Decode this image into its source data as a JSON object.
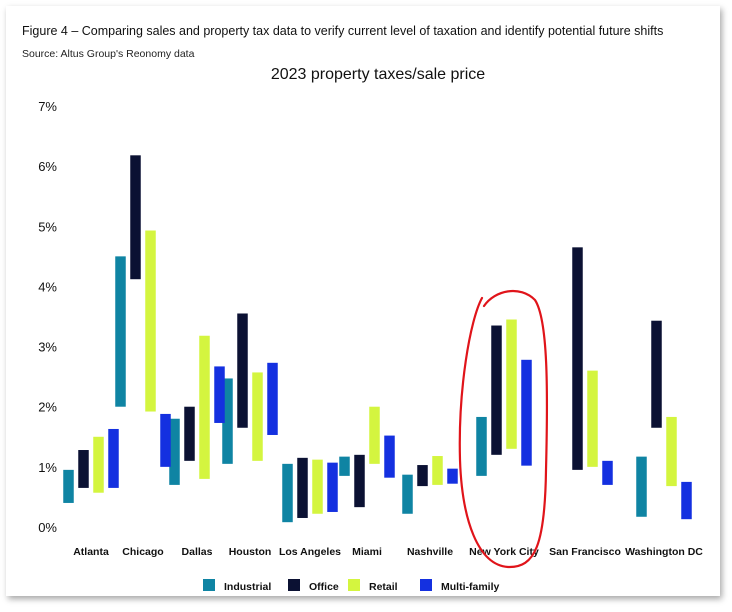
{
  "figure": {
    "title": "Figure 4 – Comparing sales and property tax data to verify current level of taxation and identify potential future shifts",
    "source": "Source: Altus Group's Reonomy data"
  },
  "colors": {
    "Industrial": "#0f84a3",
    "Office": "#0b1133",
    "Retail": "#d4f53f",
    "Multi-family": "#1430e0",
    "annotation": "#e0141a"
  },
  "chart_data": {
    "type": "bar",
    "subtype": "floating-range",
    "title": "2023 property taxes/sale price",
    "xlabel": "",
    "ylabel": "",
    "ylim": [
      0,
      7
    ],
    "yticks": [
      "0%",
      "1%",
      "2%",
      "3%",
      "4%",
      "5%",
      "6%",
      "7%"
    ],
    "grid": false,
    "legend_position": "bottom",
    "categories": [
      "Atlanta",
      "Chicago",
      "Dallas",
      "Houston",
      "Los Angeles",
      "Miami",
      "Nashville",
      "New York City",
      "San Francisco",
      "Washington DC"
    ],
    "series": [
      {
        "name": "Industrial",
        "ranges": [
          [
            0.4,
            0.95
          ],
          [
            2.0,
            4.5
          ],
          [
            0.7,
            1.8
          ],
          [
            1.05,
            2.47
          ],
          [
            0.08,
            1.05
          ],
          [
            0.85,
            1.17
          ],
          [
            0.22,
            0.87
          ],
          [
            0.85,
            1.83
          ],
          null,
          [
            0.17,
            1.17
          ]
        ]
      },
      {
        "name": "Office",
        "ranges": [
          [
            0.65,
            1.28
          ],
          [
            4.12,
            6.18
          ],
          [
            1.1,
            2.0
          ],
          [
            1.65,
            3.55
          ],
          [
            0.15,
            1.15
          ],
          [
            0.33,
            1.2
          ],
          [
            0.68,
            1.03
          ],
          [
            1.2,
            3.35
          ],
          [
            0.95,
            4.65
          ],
          [
            1.65,
            3.43
          ]
        ]
      },
      {
        "name": "Retail",
        "ranges": [
          [
            0.57,
            1.5
          ],
          [
            1.92,
            4.93
          ],
          [
            0.8,
            3.18
          ],
          [
            1.1,
            2.57
          ],
          [
            0.22,
            1.12
          ],
          [
            1.05,
            2.0
          ],
          [
            0.7,
            1.18
          ],
          [
            1.3,
            3.45
          ],
          [
            1.0,
            2.6
          ],
          [
            0.68,
            1.83
          ]
        ]
      },
      {
        "name": "Multi-family",
        "ranges": [
          [
            0.65,
            1.63
          ],
          [
            1.0,
            1.88
          ],
          [
            1.73,
            2.67
          ],
          [
            1.53,
            2.73
          ],
          [
            0.25,
            1.07
          ],
          [
            0.82,
            1.52
          ],
          [
            0.72,
            0.97
          ],
          [
            1.02,
            2.78
          ],
          [
            0.7,
            1.1
          ],
          [
            0.13,
            0.75
          ]
        ]
      }
    ],
    "annotations": [
      {
        "shape": "hand-drawn ellipse",
        "target": "New York City",
        "color": "red"
      }
    ]
  }
}
